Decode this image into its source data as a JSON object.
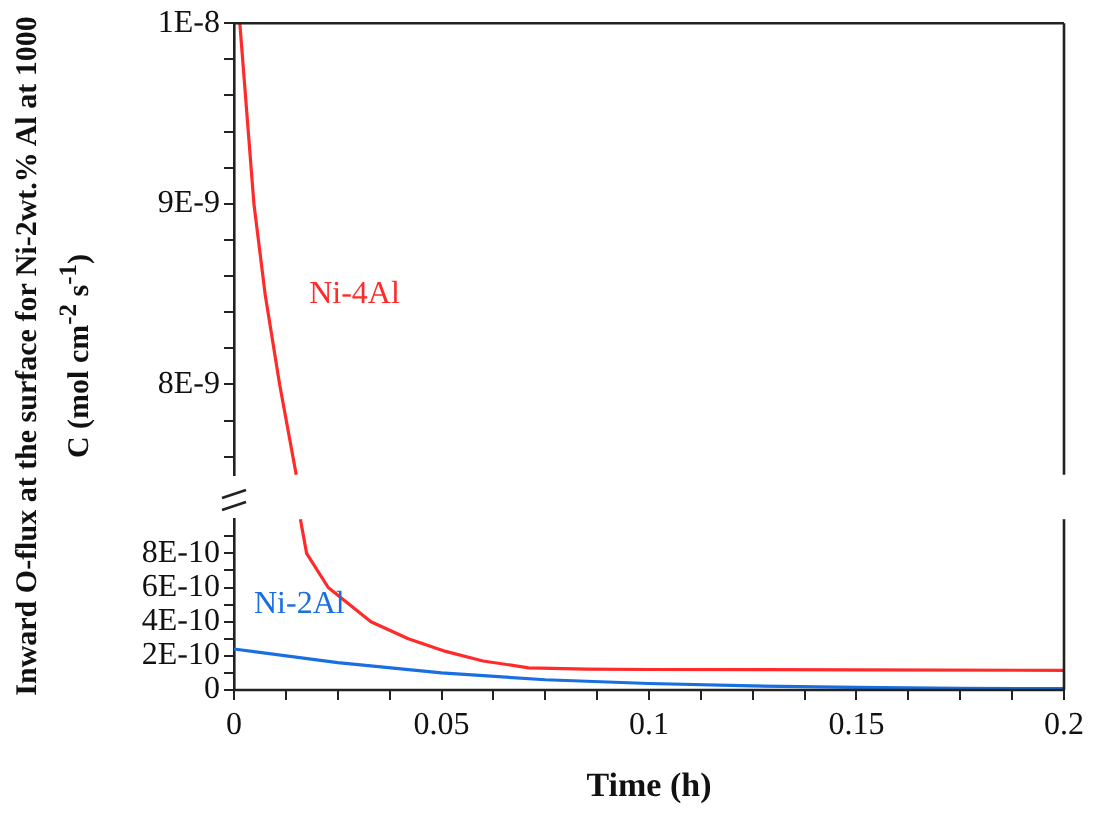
{
  "chart_data": [
    {
      "type": "line",
      "ylabel": "Inward O-flux at the surface for Ni-2wt.% Al at 1000 C (mol cm$^{-2}$ s$^{-1}$)",
      "xlim": [
        0,
        0.2
      ],
      "ylim": [
        7.5e-09,
        1e-08
      ],
      "yticks": [
        {
          "value": 1e-08,
          "label": "1E-8"
        },
        {
          "value": 9.8e-09,
          "label": null
        },
        {
          "value": 9.6e-09,
          "label": null
        },
        {
          "value": 9.4e-09,
          "label": null
        },
        {
          "value": 9.2e-09,
          "label": null
        },
        {
          "value": 9e-09,
          "label": "9E-9"
        },
        {
          "value": 8.8e-09,
          "label": null
        },
        {
          "value": 8.6e-09,
          "label": null
        },
        {
          "value": 8.4e-09,
          "label": null
        },
        {
          "value": 8.2e-09,
          "label": null
        },
        {
          "value": 8e-09,
          "label": "8E-9"
        },
        {
          "value": 7.8e-09,
          "label": null
        },
        {
          "value": 7.6e-09,
          "label": null
        }
      ],
      "tick_labels": "y",
      "grid": false,
      "legend": false,
      "marker": "none",
      "line_style": "solid",
      "series": [
        {
          "name": "Ni-4Al",
          "color": "#ff2a2a",
          "x": [
            0.0014,
            0.0048,
            0.0075,
            0.011,
            0.015
          ],
          "values": [
            1e-08,
            9e-09,
            8.5e-09,
            8e-09,
            7.5e-09
          ]
        }
      ]
    },
    {
      "type": "line",
      "xlabel": "Time (h)",
      "xlim": [
        0,
        0.2
      ],
      "ylim": [
        0,
        1e-09
      ],
      "xticks": [
        0,
        {
          "value": 0.0125,
          "label": null
        },
        {
          "value": 0.025,
          "label": null
        },
        {
          "value": 0.0375,
          "label": null
        },
        0.05,
        {
          "value": 0.0625,
          "label": null
        },
        {
          "value": 0.075,
          "label": null
        },
        {
          "value": 0.0875,
          "label": null
        },
        0.1,
        {
          "value": 0.1125,
          "label": null
        },
        {
          "value": 0.125,
          "label": null
        },
        {
          "value": 0.1375,
          "label": null
        },
        0.15,
        {
          "value": 0.1625,
          "label": null
        },
        {
          "value": 0.175,
          "label": null
        },
        {
          "value": 0.1875,
          "label": null
        },
        0.2
      ],
      "yticks": [
        0,
        {
          "value": 1e-10,
          "label": null
        },
        {
          "value": 2e-10,
          "label": "2E-10"
        },
        {
          "value": 3e-10,
          "label": null
        },
        {
          "value": 4e-10,
          "label": "4E-10"
        },
        {
          "value": 5e-10,
          "label": null
        },
        {
          "value": 6e-10,
          "label": "6E-10"
        },
        {
          "value": 7e-10,
          "label": null
        },
        {
          "value": 8e-10,
          "label": "8E-10"
        },
        {
          "value": 9e-10,
          "label": null
        }
      ],
      "grid": false,
      "legend": false,
      "marker": "none",
      "line_style": "solid",
      "series": [
        {
          "color": "#ff2a2a",
          "x": [
            0.016,
            0.0175,
            0.0227,
            0.033,
            0.042,
            0.051,
            0.06,
            0.071,
            0.085,
            0.1,
            0.15,
            0.2
          ],
          "values": [
            1e-09,
            8e-10,
            6e-10,
            4e-10,
            3e-10,
            2.26e-10,
            1.7e-10,
            1.3e-10,
            1.22e-10,
            1.2e-10,
            1.18e-10,
            1.15e-10
          ]
        },
        {
          "name": "Ni-2Al",
          "color": "#1a6fe0",
          "x": [
            0,
            0.025,
            0.05,
            0.075,
            0.1,
            0.125,
            0.15,
            0.175,
            0.2
          ],
          "values": [
            2.4e-10,
            1.6e-10,
            1e-10,
            6e-11,
            3.8e-11,
            2.4e-11,
            1.5e-11,
            1e-11,
            8e-12
          ]
        }
      ]
    }
  ]
}
